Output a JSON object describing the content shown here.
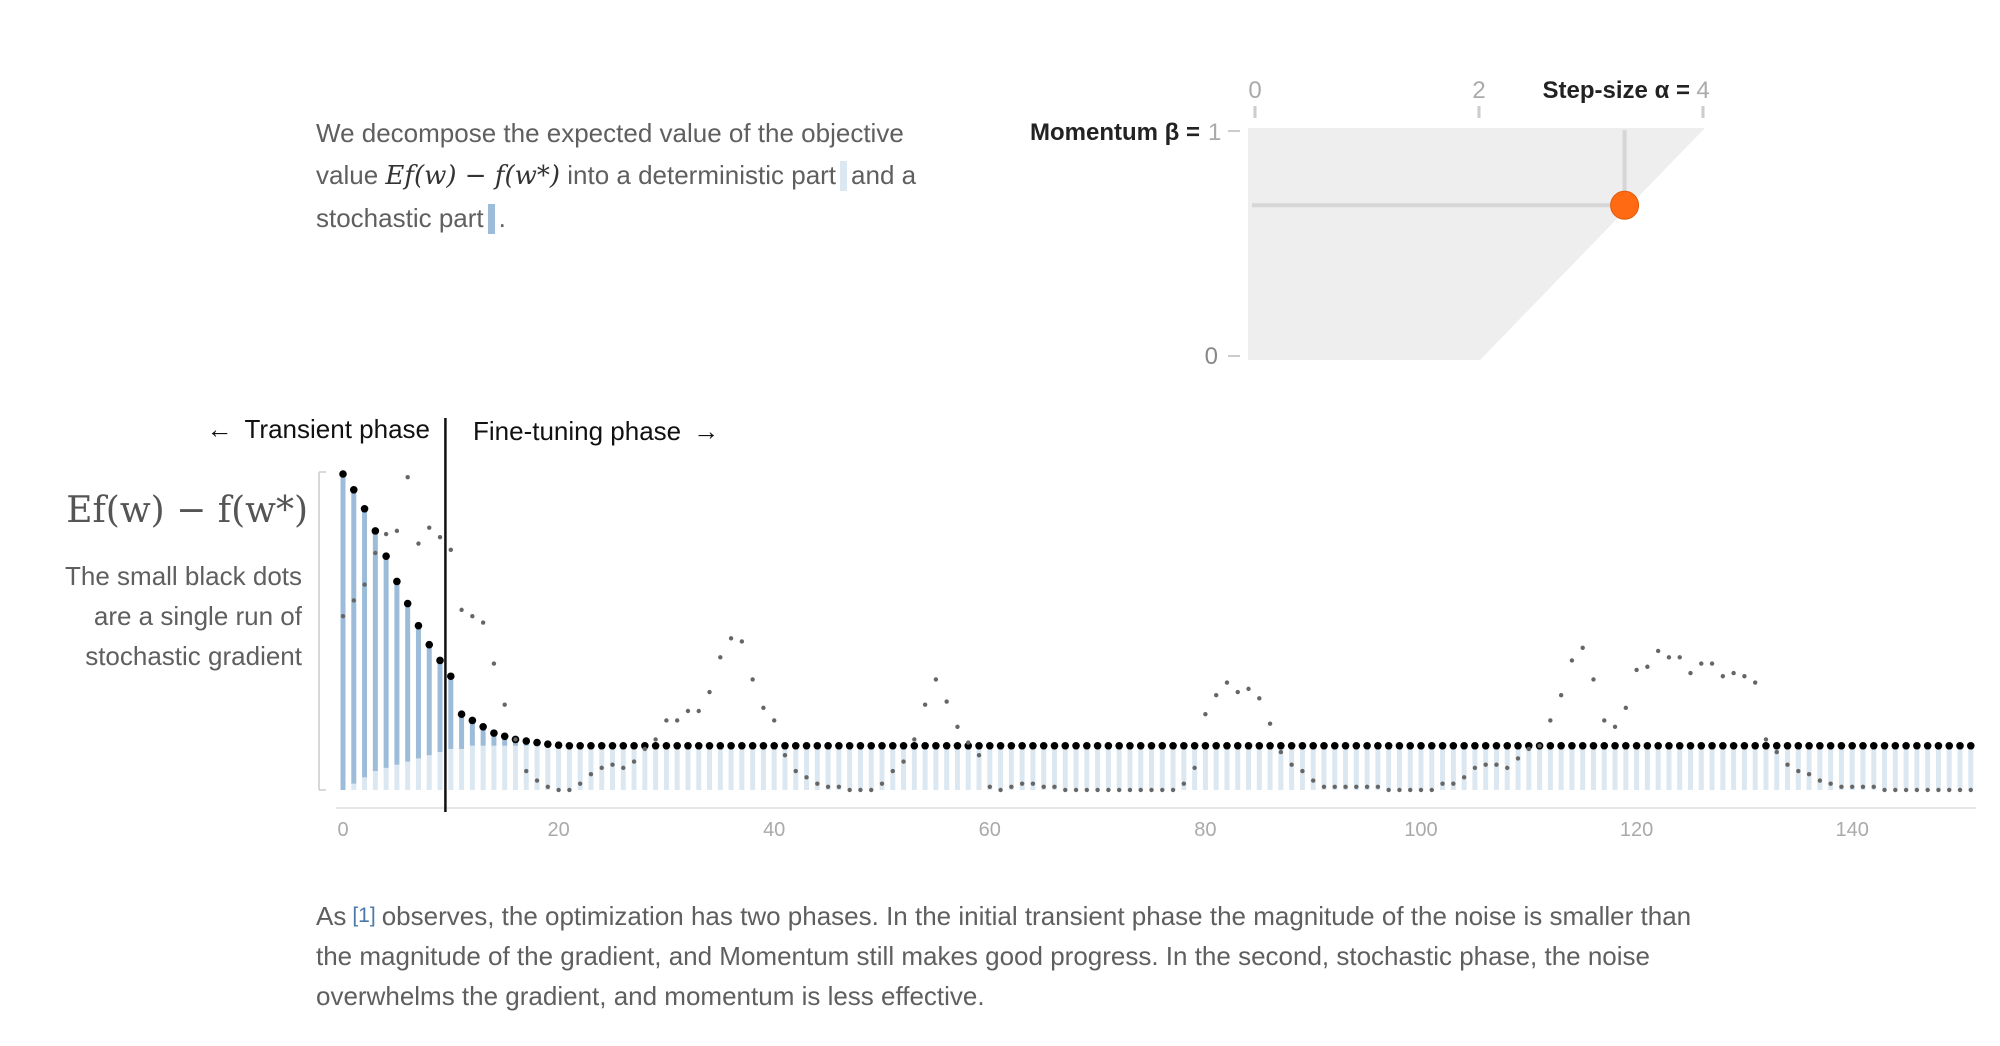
{
  "intro": {
    "text1": "We decompose the expected value of the objective value",
    "math": "Ef(w) − f(w*)",
    "text2": "into a deterministic part",
    "text3": "and a stochastic part",
    "text4": "."
  },
  "control": {
    "momentum_label": "Momentum β =",
    "stepsize_label": "Step-size α =",
    "momentum_ticks": [
      "1",
      "0"
    ],
    "stepsize_ticks": [
      "0",
      "2",
      "4"
    ],
    "alpha": 3.3,
    "beta": 0.67
  },
  "phases": {
    "transient": "Transient phase",
    "finetuning": "Fine-tuning phase",
    "left_arrow": "←",
    "right_arrow": "→"
  },
  "y_caption": "The small black dots are a single run of stochastic gradient",
  "outro": {
    "text1": "As",
    "cite": "[1]",
    "text2": "observes, the optimization has two phases. In the initial transient phase the magnitude of the noise is smaller than the magnitude of the gradient, and Momentum still makes good progress. In the second, stochastic phase, the noise overwhelms the gradient, and momentum is less effective."
  },
  "colors": {
    "deterministic": "#dbe8f2",
    "stochastic": "#9cbcd9",
    "accent": "#ff6a13"
  },
  "chart_data": {
    "type": "bar",
    "ylabel": "Ef(w) − f(w*)",
    "xlim": [
      0,
      150
    ],
    "ylim": [
      0,
      1
    ],
    "x_ticks": [
      0,
      20,
      40,
      60,
      80,
      100,
      120,
      140
    ],
    "phase_boundary": 10,
    "series": [
      {
        "name": "deterministic part",
        "values": [
          0.0,
          0.02,
          0.04,
          0.06,
          0.07,
          0.08,
          0.09,
          0.1,
          0.11,
          0.12,
          0.13,
          0.13,
          0.14,
          0.14,
          0.14,
          0.14,
          0.14,
          0.14,
          0.14,
          0.14,
          0.14,
          0.14,
          0.14,
          0.14,
          0.14,
          0.14,
          0.14,
          0.14,
          0.14,
          0.14,
          0.14,
          0.14,
          0.14,
          0.14,
          0.14,
          0.14,
          0.14,
          0.14,
          0.14,
          0.14,
          0.14,
          0.14,
          0.14,
          0.14,
          0.14,
          0.14,
          0.14,
          0.14,
          0.14,
          0.14,
          0.14,
          0.14,
          0.14,
          0.14,
          0.14,
          0.14,
          0.14,
          0.14,
          0.14,
          0.14,
          0.14,
          0.14,
          0.14,
          0.14,
          0.14,
          0.14,
          0.14,
          0.14,
          0.14,
          0.14,
          0.14,
          0.14,
          0.14,
          0.14,
          0.14,
          0.14,
          0.14,
          0.14,
          0.14,
          0.14,
          0.14,
          0.14,
          0.14,
          0.14,
          0.14,
          0.14,
          0.14,
          0.14,
          0.14,
          0.14,
          0.14,
          0.14,
          0.14,
          0.14,
          0.14,
          0.14,
          0.14,
          0.14,
          0.14,
          0.14,
          0.14,
          0.14,
          0.14,
          0.14,
          0.14,
          0.14,
          0.14,
          0.14,
          0.14,
          0.14,
          0.14,
          0.14,
          0.14,
          0.14,
          0.14,
          0.14,
          0.14,
          0.14,
          0.14,
          0.14,
          0.14,
          0.14,
          0.14,
          0.14,
          0.14,
          0.14,
          0.14,
          0.14,
          0.14,
          0.14,
          0.14,
          0.14,
          0.14,
          0.14,
          0.14,
          0.14,
          0.14,
          0.14,
          0.14,
          0.14,
          0.14,
          0.14,
          0.14,
          0.14,
          0.14,
          0.14,
          0.14,
          0.14,
          0.14,
          0.14,
          0.14,
          0.14
        ]
      },
      {
        "name": "stochastic part",
        "values": [
          1.0,
          0.93,
          0.85,
          0.76,
          0.67,
          0.58,
          0.5,
          0.42,
          0.35,
          0.29,
          0.23,
          0.11,
          0.08,
          0.06,
          0.04,
          0.03,
          0.02,
          0.015,
          0.01,
          0.005,
          0.002,
          0,
          0,
          0,
          0,
          0,
          0,
          0,
          0,
          0,
          0,
          0,
          0,
          0,
          0,
          0,
          0,
          0,
          0,
          0,
          0,
          0,
          0,
          0,
          0,
          0,
          0,
          0,
          0,
          0,
          0,
          0,
          0,
          0,
          0,
          0,
          0,
          0,
          0,
          0,
          0,
          0,
          0,
          0,
          0,
          0,
          0,
          0,
          0,
          0,
          0,
          0,
          0,
          0,
          0,
          0,
          0,
          0,
          0,
          0,
          0,
          0,
          0,
          0,
          0,
          0,
          0,
          0,
          0,
          0,
          0,
          0,
          0,
          0,
          0,
          0,
          0,
          0,
          0,
          0,
          0,
          0,
          0,
          0,
          0,
          0,
          0,
          0,
          0,
          0,
          0,
          0,
          0,
          0,
          0,
          0,
          0,
          0,
          0,
          0,
          0,
          0,
          0,
          0,
          0,
          0,
          0,
          0,
          0,
          0,
          0,
          0,
          0,
          0,
          0,
          0,
          0,
          0,
          0,
          0,
          0,
          0,
          0,
          0,
          0,
          0,
          0,
          0,
          0,
          0,
          0,
          0,
          0,
          0,
          0,
          0
        ]
      },
      {
        "name": "single run",
        "values": [
          0.55,
          0.6,
          0.65,
          0.75,
          0.81,
          0.82,
          0.99,
          0.78,
          0.83,
          0.8,
          0.76,
          0.57,
          0.55,
          0.53,
          0.4,
          0.27,
          0.16,
          0.06,
          0.03,
          0.01,
          0.0,
          0.0,
          0.02,
          0.05,
          0.07,
          0.08,
          0.07,
          0.09,
          0.13,
          0.16,
          0.22,
          0.22,
          0.25,
          0.25,
          0.31,
          0.42,
          0.48,
          0.47,
          0.35,
          0.26,
          0.22,
          0.11,
          0.06,
          0.04,
          0.02,
          0.01,
          0.01,
          0.0,
          0.0,
          0.0,
          0.02,
          0.06,
          0.09,
          0.16,
          0.27,
          0.35,
          0.28,
          0.2,
          0.15,
          0.11,
          0.01,
          0.0,
          0.01,
          0.02,
          0.02,
          0.01,
          0.01,
          0.0,
          0.0,
          0.0,
          0.0,
          0.0,
          0.0,
          0.0,
          0.0,
          0.0,
          0.0,
          0.0,
          0.02,
          0.07,
          0.24,
          0.3,
          0.34,
          0.31,
          0.32,
          0.29,
          0.21,
          0.12,
          0.08,
          0.06,
          0.03,
          0.01,
          0.01,
          0.01,
          0.01,
          0.01,
          0.01,
          0.0,
          0.0,
          0.0,
          0.0,
          0.0,
          0.02,
          0.02,
          0.04,
          0.07,
          0.08,
          0.08,
          0.07,
          0.1,
          0.13,
          0.14,
          0.22,
          0.3,
          0.41,
          0.45,
          0.35,
          0.22,
          0.2,
          0.26,
          0.38,
          0.39,
          0.44,
          0.42,
          0.42,
          0.37,
          0.4,
          0.4,
          0.36,
          0.37,
          0.36,
          0.34,
          0.16,
          0.12,
          0.08,
          0.06,
          0.05,
          0.03,
          0.02,
          0.01,
          0.01,
          0.01,
          0.01,
          0.0,
          0.0,
          0.0,
          0.0,
          0.0,
          0.0,
          0.0,
          0.0,
          0.0,
          0.0,
          0.02,
          0.0
        ]
      }
    ]
  }
}
